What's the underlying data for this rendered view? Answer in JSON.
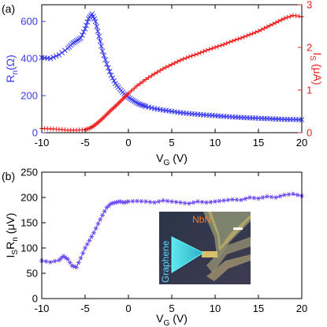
{
  "colors": {
    "blue": "#3b3bf0",
    "red": "#f01c1c",
    "purple": "#6b48f0",
    "axis": "#000000"
  },
  "chart_data": [
    {
      "panel_label": "(a)",
      "type": "scatter",
      "xlabel": "V_G (V)",
      "xlim": [
        -10,
        20
      ],
      "x_ticks": [
        -10,
        -5,
        0,
        5,
        10,
        15,
        20
      ],
      "left_axis": {
        "label": "R_n(Ω)",
        "ylim": [
          0,
          690
        ],
        "ticks": [
          0,
          200,
          400,
          600
        ]
      },
      "right_axis": {
        "label": "I_S (μA)",
        "ylim": [
          0,
          3
        ],
        "ticks": [
          0,
          1,
          2,
          3
        ]
      },
      "series": [
        {
          "axis": "left",
          "marker": "x",
          "color": "blue",
          "x": [
            -10,
            -9,
            -8,
            -7,
            -6.5,
            -6,
            -5.5,
            -5,
            -4.6,
            -4.2,
            -3.8,
            -3.4,
            -3,
            -2.5,
            -2,
            -1.5,
            -1,
            -0.5,
            0,
            0.5,
            1,
            1.5,
            2,
            3,
            4,
            5,
            6,
            7,
            8,
            9,
            10,
            11,
            12,
            13,
            14,
            15,
            16,
            17,
            18,
            19,
            20
          ],
          "y": [
            405,
            400,
            420,
            455,
            480,
            495,
            510,
            560,
            615,
            640,
            600,
            520,
            440,
            370,
            310,
            265,
            235,
            210,
            190,
            175,
            160,
            150,
            142,
            130,
            122,
            115,
            108,
            103,
            99,
            95,
            92,
            88,
            85,
            82,
            80,
            78,
            76,
            74,
            72,
            71,
            70
          ]
        },
        {
          "axis": "right",
          "marker": "+",
          "color": "red",
          "x": [
            -10,
            -9,
            -8,
            -7,
            -6,
            -5,
            -4.5,
            -4,
            -3.5,
            -3,
            -2.5,
            -2,
            -1.5,
            -1,
            -0.5,
            0,
            1,
            2,
            3,
            4,
            5,
            6,
            7,
            8,
            9,
            10,
            11,
            12,
            13,
            14,
            15,
            16,
            17,
            18,
            19,
            20
          ],
          "y": [
            0.1,
            0.09,
            0.08,
            0.06,
            0.06,
            0.07,
            0.1,
            0.16,
            0.24,
            0.33,
            0.43,
            0.53,
            0.62,
            0.72,
            0.82,
            0.92,
            1.1,
            1.25,
            1.38,
            1.5,
            1.6,
            1.7,
            1.78,
            1.85,
            1.93,
            2.0,
            2.07,
            2.15,
            2.22,
            2.3,
            2.38,
            2.48,
            2.58,
            2.68,
            2.75,
            2.72
          ]
        }
      ]
    },
    {
      "panel_label": "(b)",
      "type": "line",
      "xlabel": "V_G (V)",
      "ylabel": "I_SR_n (μV)",
      "xlim": [
        -10,
        20
      ],
      "x_ticks": [
        -10,
        -5,
        0,
        5,
        10,
        15,
        20
      ],
      "ylim": [
        0,
        250
      ],
      "y_ticks": [
        0,
        50,
        100,
        150,
        200,
        250
      ],
      "series": [
        {
          "marker": "*",
          "color": "purple",
          "x": [
            -10,
            -9,
            -8,
            -7.5,
            -7,
            -6.5,
            -6,
            -5.5,
            -5,
            -4.5,
            -4,
            -3.5,
            -3,
            -2.5,
            -2,
            -1.5,
            -1,
            -0.5,
            0,
            1,
            2,
            3,
            4,
            5,
            6,
            7,
            8,
            9,
            10,
            11,
            12,
            13,
            14,
            15,
            16,
            17,
            18,
            19,
            20
          ],
          "y": [
            75,
            72,
            76,
            84,
            78,
            65,
            62,
            80,
            100,
            115,
            130,
            148,
            165,
            180,
            188,
            190,
            192,
            190,
            192,
            193,
            192,
            190,
            194,
            192,
            190,
            188,
            192,
            190,
            192,
            194,
            196,
            195,
            200,
            198,
            202,
            200,
            205,
            207,
            203
          ]
        }
      ],
      "inset": {
        "labels": [
          "NbN",
          "Graphene"
        ]
      }
    }
  ]
}
